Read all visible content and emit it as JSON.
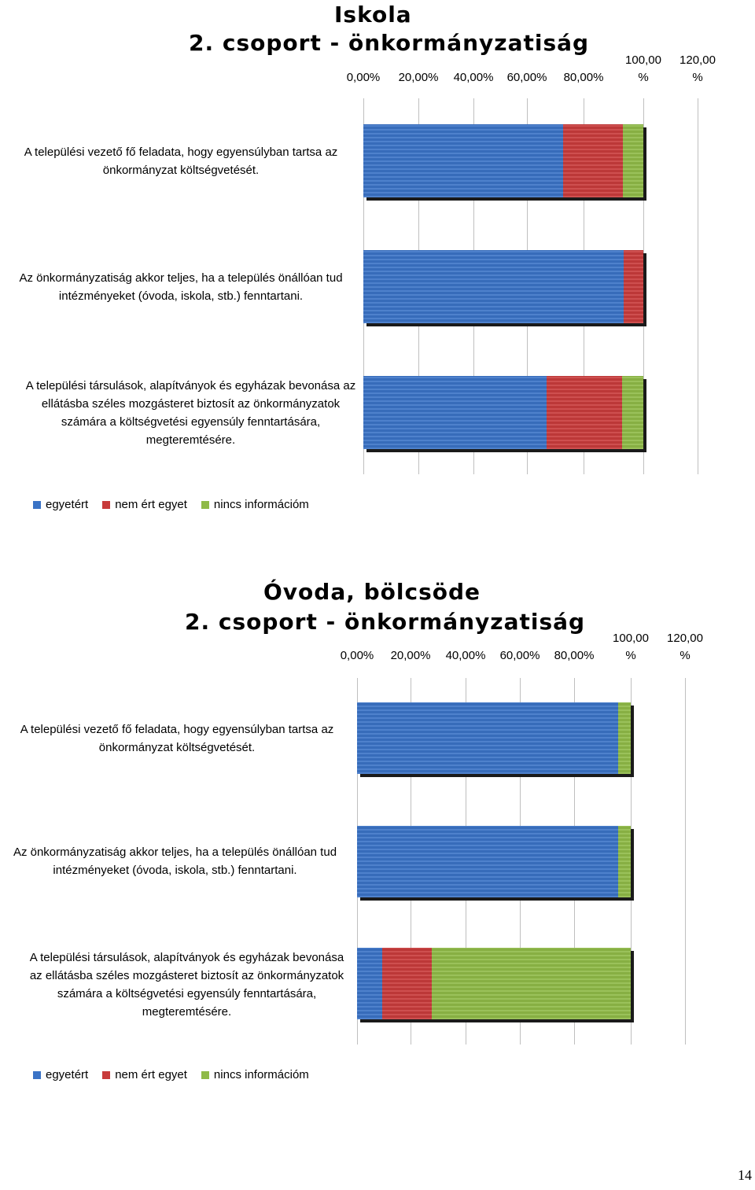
{
  "page_number": "14",
  "colors": {
    "agree": "#3a73c6",
    "disagree": "#c83b3b",
    "no_info": "#8fba47"
  },
  "chart_data": [
    {
      "type": "bar",
      "orientation": "horizontal",
      "stacked": true,
      "title_line1": "Iskola",
      "title_line2": "2. csoport - önkormányzatiság",
      "xlim": [
        0,
        120
      ],
      "x_ticks": [
        "0,00%",
        "20,00%",
        "40,00%",
        "60,00%",
        "80,00%",
        "100,00\n%",
        "120,00\n%"
      ],
      "legend": [
        "egyetért",
        "nem ért egyet",
        "nincs információm"
      ],
      "legend_position": "bottom",
      "categories": [
        "A települési vezető fő feladata, hogy egyensúlyban tartsa az önkormányzat költségvetését.",
        "Az önkormányzatiság akkor teljes, ha a település önállóan tud intézményeket (óvoda, iskola, stb.) fenntartani.",
        "A települési társulások, alapítványok és egyházak bevonása az ellátásba széles mozgásteret biztosít az önkormányzatok számára a költségvetési egyensúly fenntartására, megteremtésére."
      ],
      "series": [
        {
          "name": "egyetért",
          "values": [
            71.4,
            92.9,
            65.4
          ]
        },
        {
          "name": "nem ért egyet",
          "values": [
            21.4,
            7.1,
            26.9
          ]
        },
        {
          "name": "nincs információm",
          "values": [
            7.2,
            0,
            7.7
          ]
        }
      ]
    },
    {
      "type": "bar",
      "orientation": "horizontal",
      "stacked": true,
      "title_line1": "Óvoda, bölcsöde",
      "title_line2": "2. csoport - önkormányzatiság",
      "xlim": [
        0,
        120
      ],
      "x_ticks": [
        "0,00%",
        "20,00%",
        "40,00%",
        "60,00%",
        "80,00%",
        "100,00\n%",
        "120,00\n%"
      ],
      "legend": [
        "egyetért",
        "nem ért egyet",
        "nincs információm"
      ],
      "legend_position": "bottom",
      "categories": [
        "A települési vezető fő feladata, hogy egyensúlyban tartsa az önkormányzat költségvetését.",
        "Az önkormányzatiság akkor teljes, ha a település önállóan tud intézményeket (óvoda, iskola, stb.) fenntartani.",
        "A települési társulások, alapítványok és egyházak bevonása az ellátásba széles mozgásteret biztosít az önkormányzatok számára a költségvetési egyensúly fenntartására, megteremtésére."
      ],
      "series": [
        {
          "name": "egyetért",
          "values": [
            95.5,
            95.5,
            9.1
          ]
        },
        {
          "name": "nem ért egyet",
          "values": [
            0,
            0,
            18.2
          ]
        },
        {
          "name": "nincs információm",
          "values": [
            4.5,
            4.5,
            72.7
          ]
        }
      ]
    }
  ]
}
